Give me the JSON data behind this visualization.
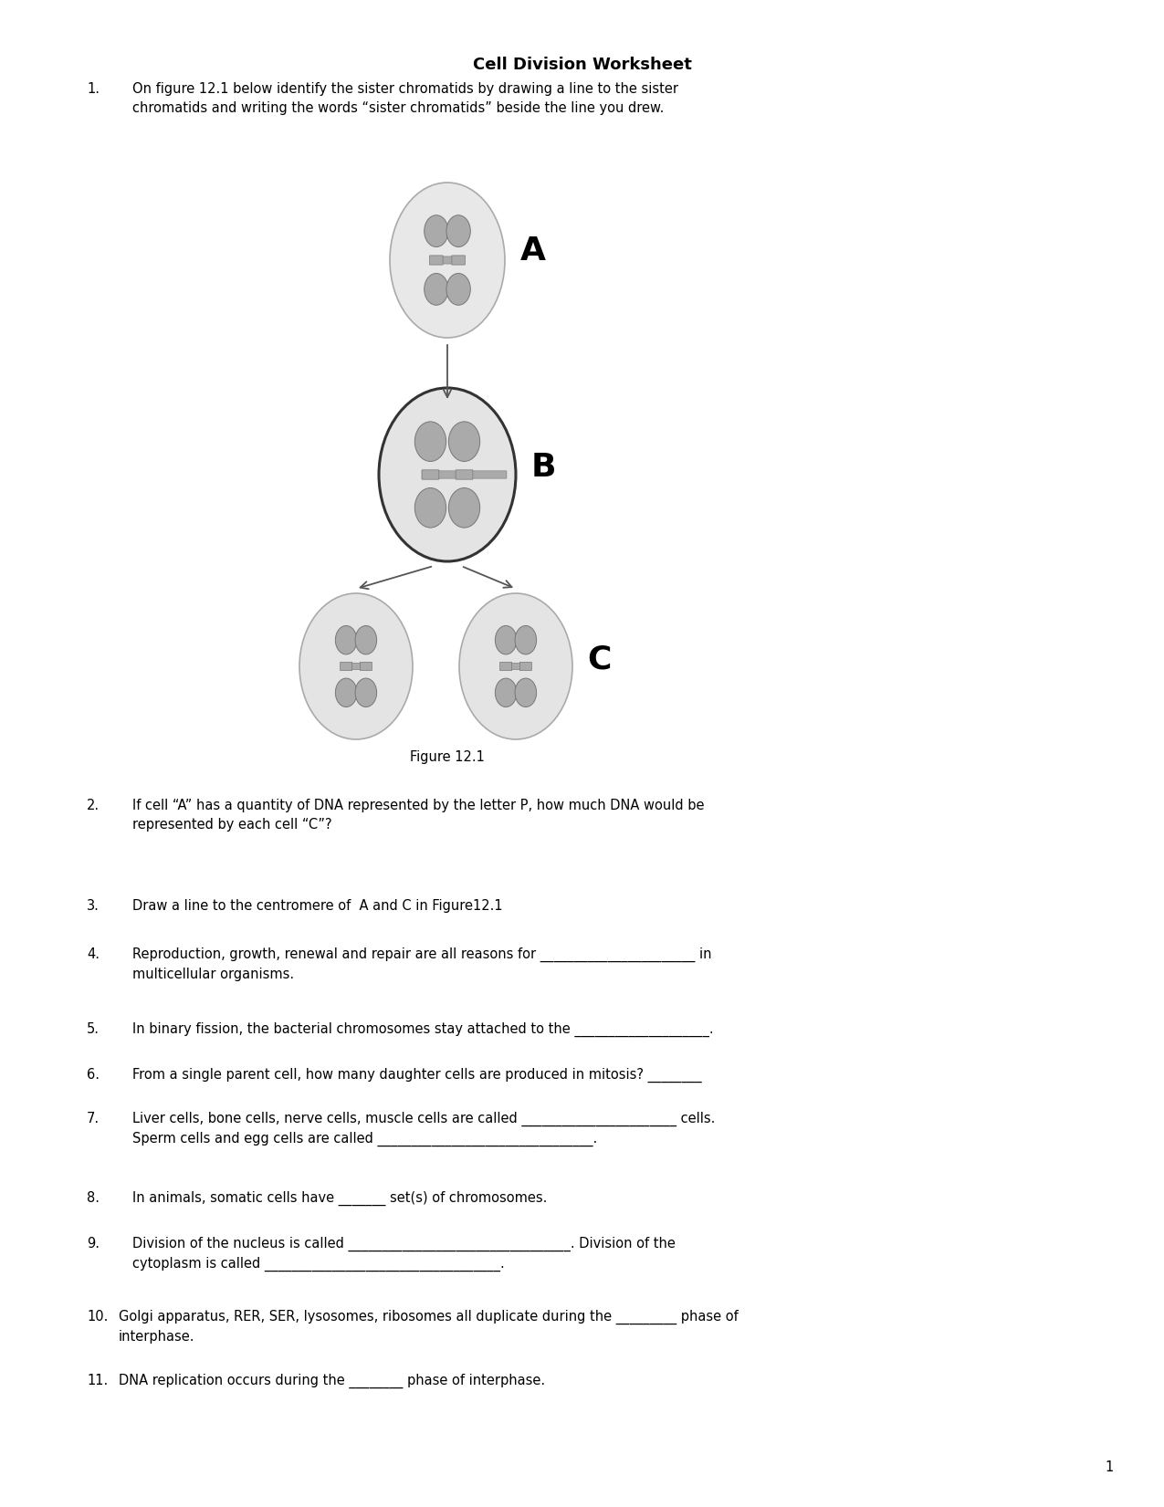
{
  "title": "Cell Division Worksheet",
  "title_fontsize": 13,
  "q1_num": "1.",
  "q1_text": "On figure 12.1 below identify the sister chromatids by drawing a line to the sister\nchromatids and writing the words “sister chromatids” beside the line you drew.",
  "q2_num": "2.",
  "q2_text": "If cell “A” has a quantity of DNA represented by the letter P, how much DNA would be\nrepresented by each cell “C”?",
  "q3_num": "3.",
  "q3_text": "Draw a line to the centromere of  A and C in Figure12.1",
  "q4_num": "4.",
  "q4_text": "Reproduction, growth, renewal and repair are all reasons for _______________________ in\nmulticellular organisms.",
  "q5_num": "5.",
  "q5_text": "In binary fission, the bacterial chromosomes stay attached to the ____________________.",
  "q6_num": "6.",
  "q6_text": "From a single parent cell, how many daughter cells are produced in mitosis? ________",
  "q7_num": "7.",
  "q7_text": "Liver cells, bone cells, nerve cells, muscle cells are called _______________________ cells.\nSperm cells and egg cells are called ________________________________.",
  "q8_num": "8.",
  "q8_text": "In animals, somatic cells have _______ set(s) of chromosomes.",
  "q9_num": "9.",
  "q9_text": "Division of the nucleus is called _________________________________. Division of the\ncytoplasm is called ___________________________________.",
  "q10_num": "10.",
  "q10_text": "Golgi apparatus, RER, SER, lysosomes, ribosomes all duplicate during the _________ phase of\ninterphase.",
  "q11_num": "11.",
  "q11_text": "DNA replication occurs during the ________ phase of interphase.",
  "figure_caption": "Figure 12.1",
  "label_A": "A",
  "label_B": "B",
  "label_C": "C",
  "page_num": "1",
  "bg_color": "#ffffff",
  "text_color": "#000000",
  "arrow_color": "#555555",
  "cell_A_fill": "#e8e8e8",
  "cell_A_edge": "#aaaaaa",
  "cell_B_fill": "#e4e4e4",
  "cell_B_edge": "#333333",
  "cell_C_fill": "#e4e4e4",
  "cell_C_edge": "#aaaaaa",
  "chrom_fill": "#aaaaaa",
  "chrom_edge": "#777777"
}
